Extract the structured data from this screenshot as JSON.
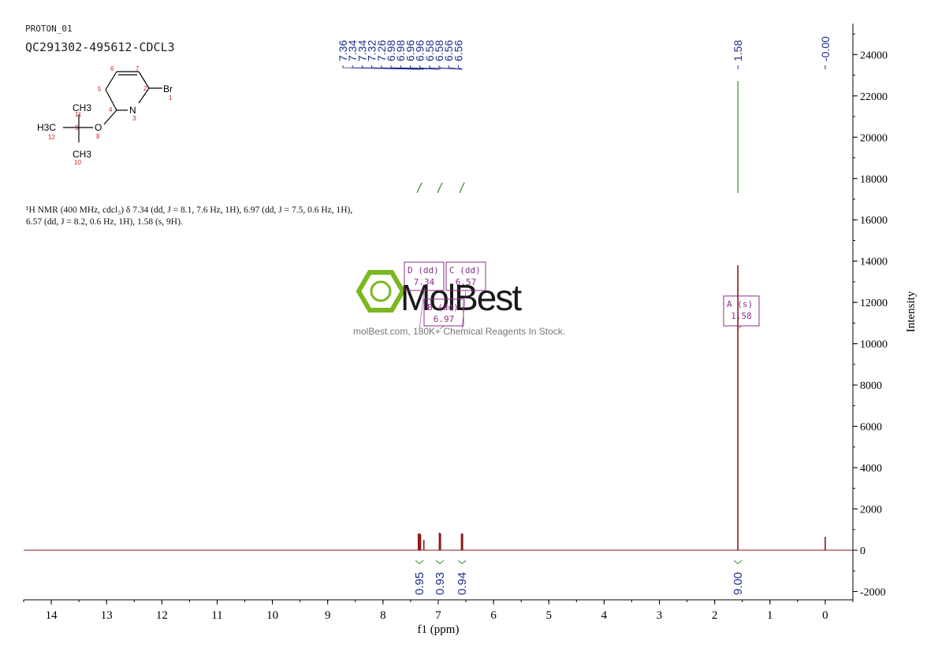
{
  "header": {
    "experiment": "PROTON_01",
    "sample": "QC291302-495612-CDCL3"
  },
  "nmr_summary": "¹H NMR (400 MHz, cdcl₃) δ 7.34 (dd, J = 8.1, 7.6 Hz, 1H), 6.97 (dd, J = 7.5, 0.6 Hz, 1H), 6.57 (dd, J = 8.2, 0.6 Hz, 1H), 1.58 (s, 9H).",
  "watermark": {
    "brand": "MolBest",
    "tagline": "molBest.com, 180K+ Chemical Reagents In Stock."
  },
  "molecule": {
    "atoms": [
      "Br",
      "N",
      "O",
      "CH3",
      "CH3",
      "H3C"
    ],
    "atom_numbers": [
      "1",
      "2",
      "3",
      "4",
      "5",
      "6",
      "7",
      "8",
      "9",
      "10",
      "11",
      "12"
    ]
  },
  "colors": {
    "spectrum": "#8b1a1a",
    "peak_label": "#1f2f8f",
    "integral": "#2e8b2e",
    "multiplet_box": "#8b2f8b",
    "atom_number": "#cc2222"
  },
  "chart_data": {
    "type": "line",
    "xlabel": "f1 (ppm)",
    "ylabel": "Intensity",
    "xlim": [
      14.5,
      -0.5
    ],
    "ylim": [
      -2400,
      25500
    ],
    "x_ticks": [
      "14",
      "13",
      "12",
      "11",
      "10",
      "9",
      "8",
      "7",
      "6",
      "5",
      "4",
      "3",
      "2",
      "1",
      "0"
    ],
    "y_ticks": [
      "-2000",
      "0",
      "2000",
      "4000",
      "6000",
      "8000",
      "10000",
      "12000",
      "14000",
      "16000",
      "18000",
      "20000",
      "22000",
      "24000"
    ],
    "peaks": [
      {
        "ppm": 7.36,
        "height": 800
      },
      {
        "ppm": 7.34,
        "height": 820
      },
      {
        "ppm": 7.32,
        "height": 780
      },
      {
        "ppm": 7.26,
        "height": 500
      },
      {
        "ppm": 6.98,
        "height": 850
      },
      {
        "ppm": 6.96,
        "height": 820
      },
      {
        "ppm": 6.58,
        "height": 820
      },
      {
        "ppm": 6.56,
        "height": 800
      },
      {
        "ppm": 1.58,
        "height": 13800
      },
      {
        "ppm": 0.0,
        "height": 650
      }
    ],
    "peak_labels": [
      {
        "group": "aromatic",
        "labels": [
          "7.36",
          "7.34",
          "7.34",
          "7.32",
          "7.26",
          "6.98",
          "6.98",
          "6.96",
          "6.96",
          "6.58",
          "6.58",
          "6.56",
          "6.56"
        ]
      },
      {
        "group": "tbu",
        "labels": [
          "1.58"
        ]
      },
      {
        "group": "tms",
        "labels": [
          "-0.00"
        ]
      }
    ],
    "integrals": [
      {
        "ppm": 7.34,
        "value": "0.95"
      },
      {
        "ppm": 6.97,
        "value": "0.93"
      },
      {
        "ppm": 6.57,
        "value": "0.94"
      },
      {
        "ppm": 1.58,
        "value": "9.00"
      }
    ],
    "multiplets": [
      {
        "label": "D (dd)",
        "shift": "7.34",
        "ppm": 7.34
      },
      {
        "label": "C (dd)",
        "shift": "6.57",
        "ppm": 6.57
      },
      {
        "label": "B (dd)",
        "shift": "6.97",
        "ppm": 6.97
      },
      {
        "label": "A (s)",
        "shift": "1.58",
        "ppm": 1.58
      }
    ]
  }
}
